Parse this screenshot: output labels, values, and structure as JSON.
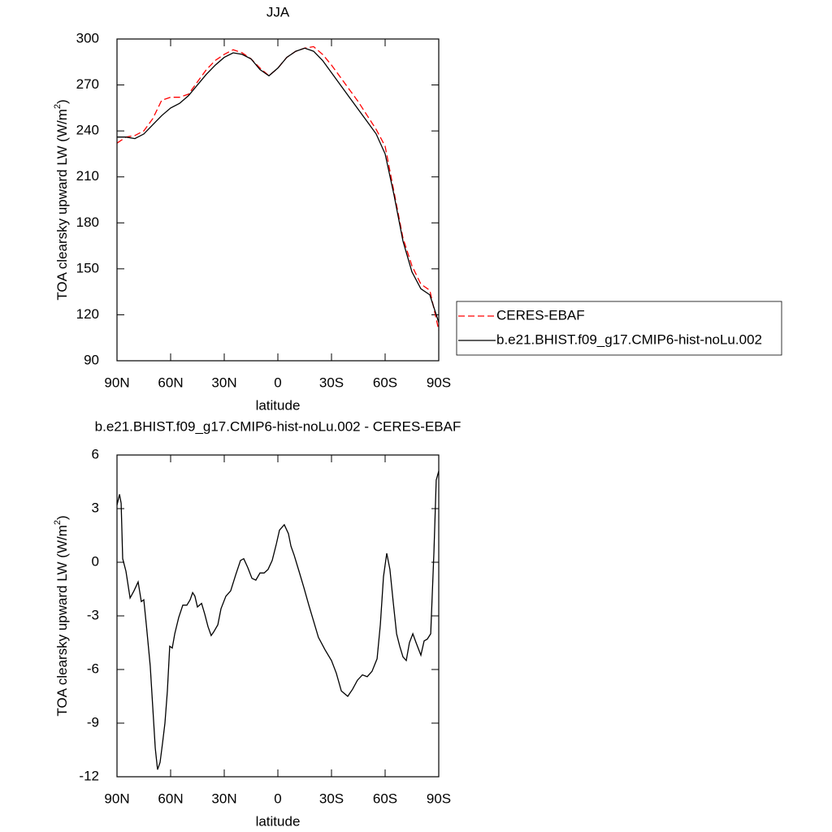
{
  "chart_data": [
    {
      "type": "line",
      "title": "JJA",
      "xlabel": "latitude",
      "ylabel": {
        "text": "TOA clearsky upward LW (W/m",
        "sup": "2",
        "end": ")"
      },
      "x": [
        90,
        85,
        80,
        75,
        70,
        65,
        60,
        55,
        50,
        45,
        40,
        35,
        30,
        25,
        20,
        15,
        10,
        5,
        0,
        -5,
        -10,
        -15,
        -20,
        -25,
        -30,
        -35,
        -40,
        -45,
        -50,
        -55,
        -60,
        -65,
        -70,
        -75,
        -80,
        -85,
        -90
      ],
      "xlim": [
        90,
        -90
      ],
      "xticks": [
        {
          "value": 90,
          "label": "90N"
        },
        {
          "value": 60,
          "label": "60N"
        },
        {
          "value": 30,
          "label": "30N"
        },
        0,
        {
          "value": -30,
          "label": "30S"
        },
        {
          "value": -60,
          "label": "60S"
        },
        {
          "value": -90,
          "label": "90S"
        }
      ],
      "ylim": [
        90,
        300
      ],
      "yticks": [
        90,
        120,
        150,
        180,
        210,
        240,
        270,
        300
      ],
      "legend": "outside-right",
      "series": [
        {
          "name": "CERES-EBAF",
          "color": "#ff0000",
          "dashed": true,
          "values": [
            232,
            236,
            237,
            240,
            248,
            260,
            262,
            262,
            264,
            272,
            280,
            286,
            290,
            293,
            291,
            287,
            281,
            276,
            281,
            288,
            292,
            294,
            295,
            290,
            283,
            275,
            267,
            259,
            250,
            241,
            230,
            200,
            170,
            152,
            140,
            136,
            110
          ]
        },
        {
          "name": "b.e21.BHIST.f09_g17.CMIP6-hist-noLu.002",
          "color": "#000000",
          "dashed": false,
          "values": [
            236,
            236,
            235,
            238,
            244,
            250,
            255,
            258,
            263,
            270,
            277,
            283,
            288,
            291,
            290,
            287,
            280,
            276,
            281,
            288,
            292,
            294,
            292,
            286,
            278,
            270,
            262,
            254,
            246,
            238,
            225,
            198,
            168,
            148,
            137,
            133,
            115
          ]
        }
      ]
    },
    {
      "type": "line",
      "title": "b.e21.BHIST.f09_g17.CMIP6-hist-noLu.002 - CERES-EBAF",
      "xlabel": "latitude",
      "ylabel": {
        "text": "TOA clearsky upward LW (W/m",
        "sup": "2",
        "end": ")"
      },
      "x": [
        90,
        88.6,
        87.7,
        86.8,
        85,
        82.7,
        80.5,
        78.2,
        76.4,
        75,
        73.6,
        71.4,
        70,
        68.6,
        67.3,
        65.9,
        64.5,
        63.2,
        61.8,
        60.5,
        59.1,
        57.7,
        55.5,
        53.2,
        50.9,
        49.1,
        47.7,
        46.4,
        45,
        42.7,
        40.9,
        39.1,
        37.3,
        35.9,
        33.6,
        31.8,
        29.1,
        26.4,
        23.6,
        20.9,
        19.1,
        16.8,
        14.5,
        12.3,
        10,
        7.7,
        5.5,
        3.2,
        0.9,
        -0.9,
        -3.6,
        -5.9,
        -7.3,
        -9.1,
        -11.8,
        -14.5,
        -17.3,
        -20,
        -22.7,
        -26.4,
        -30,
        -32.7,
        -35.5,
        -39.1,
        -41.8,
        -44.5,
        -47.3,
        -50,
        -52.7,
        -55.5,
        -57.3,
        -59.1,
        -60.9,
        -62.7,
        -64.5,
        -66.4,
        -68.2,
        -70,
        -71.8,
        -73.6,
        -75.5,
        -77.3,
        -80,
        -81.8,
        -83.6,
        -85.5,
        -87.3,
        -88.6,
        -90
      ],
      "xlim": [
        90,
        -90
      ],
      "xticks": [
        {
          "value": 90,
          "label": "90N"
        },
        {
          "value": 60,
          "label": "60N"
        },
        {
          "value": 30,
          "label": "30N"
        },
        0,
        {
          "value": -30,
          "label": "30S"
        },
        {
          "value": -60,
          "label": "60S"
        },
        {
          "value": -90,
          "label": "90S"
        }
      ],
      "ylim": [
        -12,
        6
      ],
      "yticks": [
        -12,
        -9,
        -6,
        -3,
        0,
        3,
        6
      ],
      "series": [
        {
          "color": "#000000",
          "dashed": false,
          "values": [
            3.2,
            3.8,
            3.3,
            0.2,
            -0.5,
            -2.0,
            -1.6,
            -1.1,
            -2.2,
            -2.1,
            -3.5,
            -5.8,
            -8.1,
            -10.4,
            -11.6,
            -11.2,
            -10.1,
            -9,
            -7.2,
            -4.7,
            -4.8,
            -4,
            -3.1,
            -2.4,
            -2.4,
            -2.1,
            -1.7,
            -1.9,
            -2.5,
            -2.3,
            -2.9,
            -3.6,
            -4.1,
            -3.9,
            -3.5,
            -2.6,
            -1.9,
            -1.6,
            -0.7,
            0.1,
            0.2,
            -0.3,
            -0.9,
            -1.0,
            -0.6,
            -0.6,
            -0.4,
            0.1,
            1.0,
            1.8,
            2.1,
            1.6,
            0.9,
            0.4,
            -0.5,
            -1.4,
            -2.4,
            -3.3,
            -4.2,
            -4.9,
            -5.5,
            -6.2,
            -7.2,
            -7.5,
            -7.1,
            -6.6,
            -6.3,
            -6.4,
            -6.1,
            -5.4,
            -3.5,
            -0.8,
            0.5,
            -0.4,
            -2.2,
            -4,
            -4.7,
            -5.3,
            -5.5,
            -4.5,
            -4.0,
            -4.5,
            -5.2,
            -4.4,
            -4.3,
            -4,
            0.6,
            4.6,
            5.1
          ]
        }
      ]
    }
  ]
}
